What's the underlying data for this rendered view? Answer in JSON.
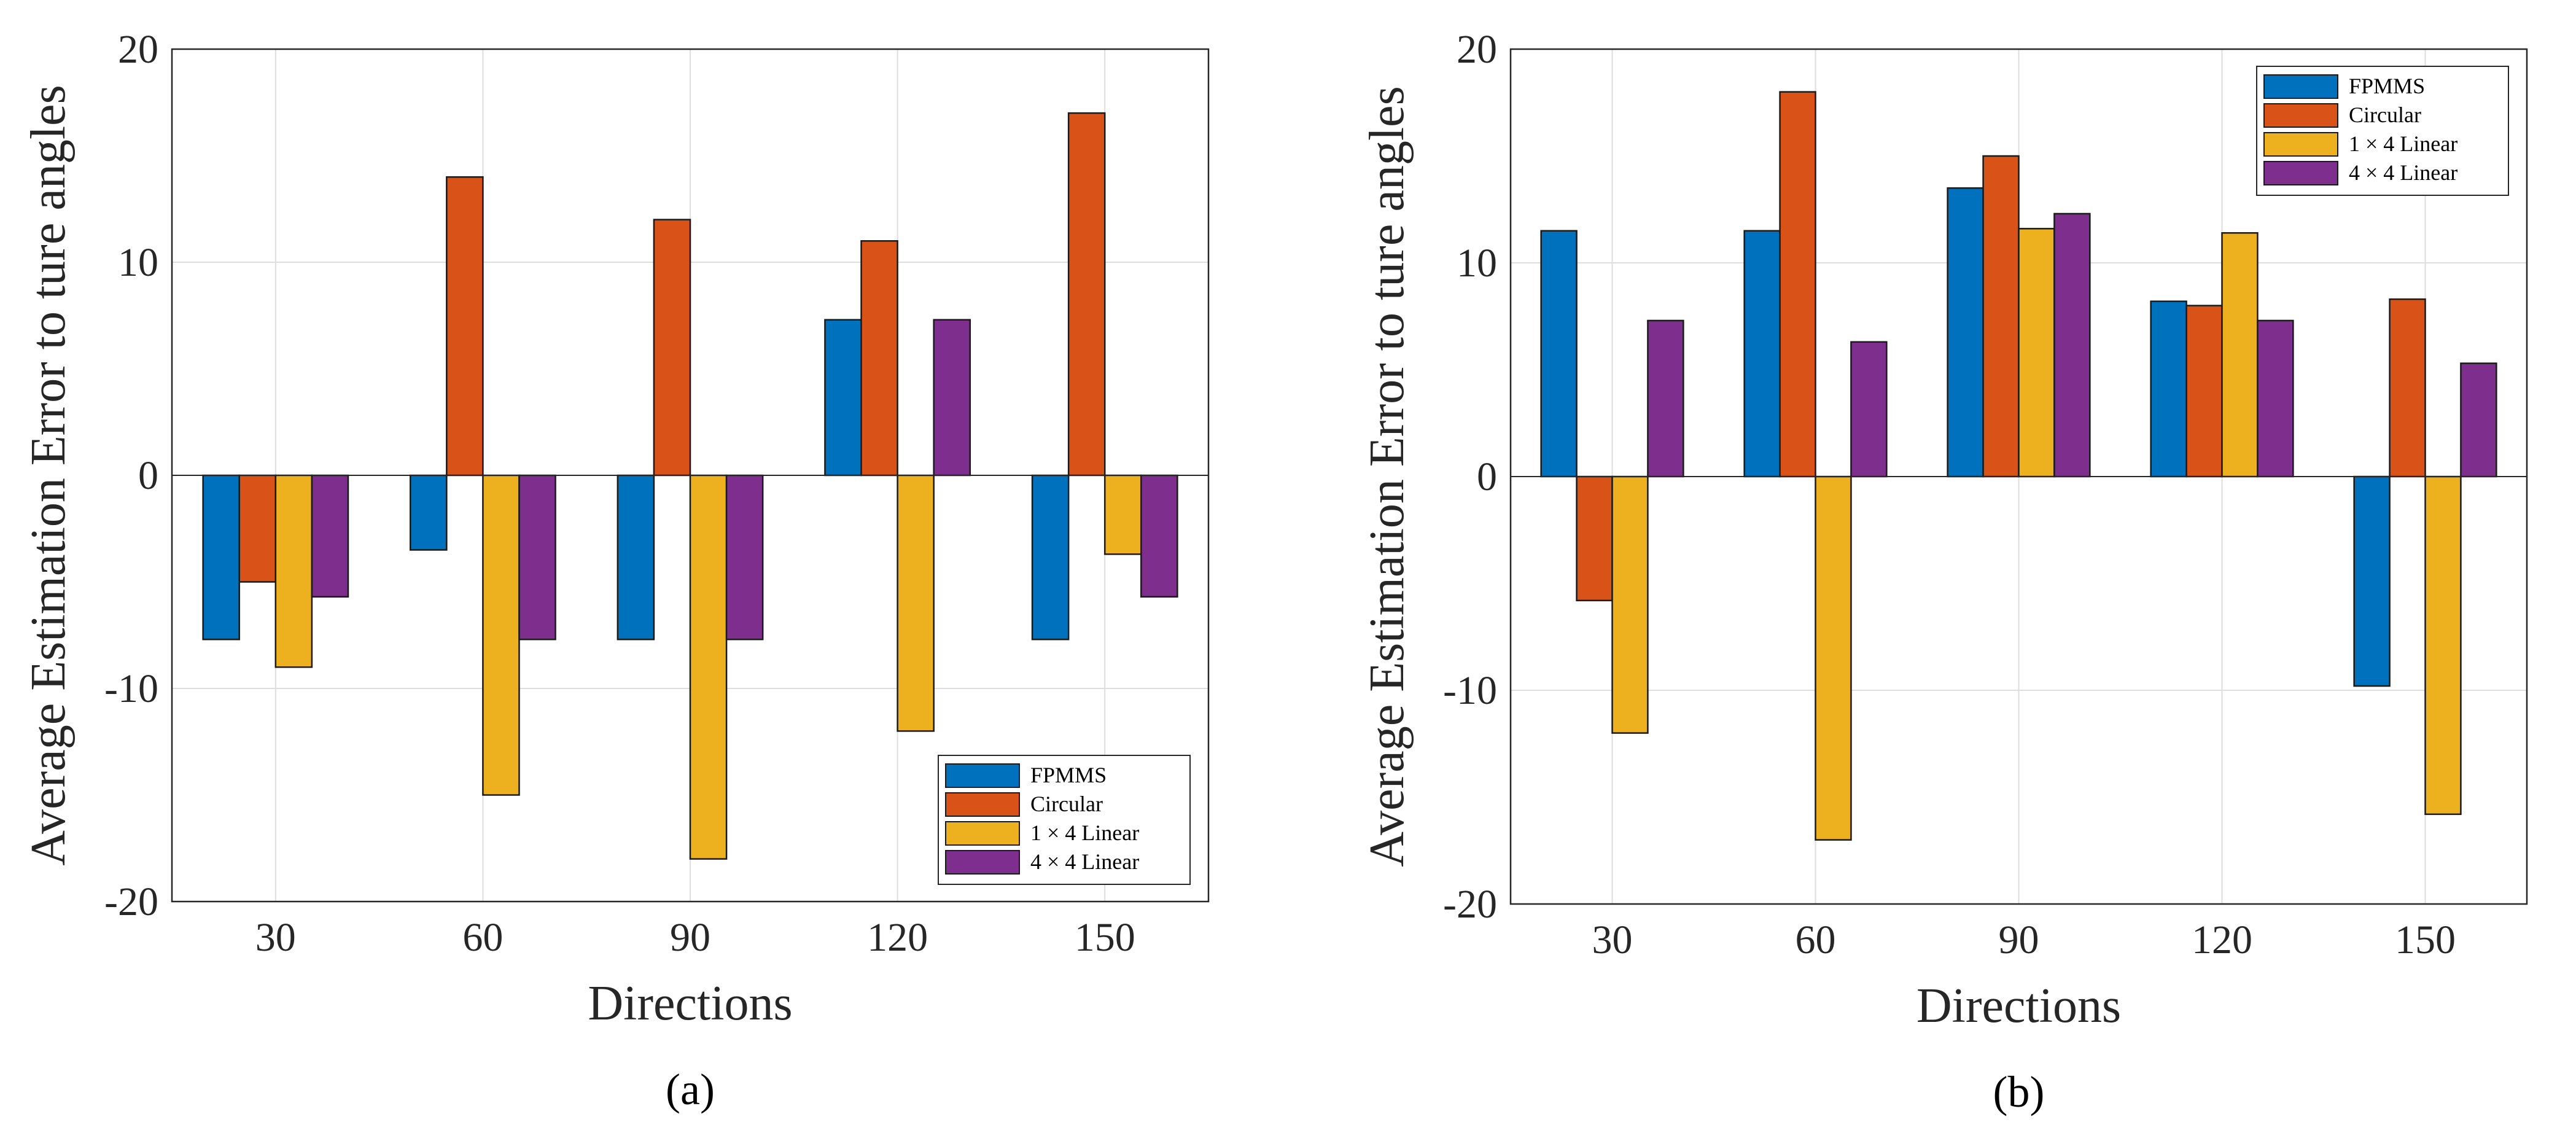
{
  "colors": {
    "FPMMS": "#0072BD",
    "Circular": "#D95319",
    "1x4": "#EDB120",
    "4x4": "#7E2F8E"
  },
  "chart_data": [
    {
      "type": "bar",
      "panel_label": "(a)",
      "xlabel": "Directions",
      "ylabel": "Average Estimation Error to ture angles",
      "categories": [
        "30",
        "60",
        "90",
        "120",
        "150"
      ],
      "ylim": [
        -20,
        20
      ],
      "yticks": [
        "-20",
        "-10",
        "0",
        "10",
        "20"
      ],
      "grid": true,
      "legend_position": "bottom-right",
      "series": [
        {
          "name": "FPMMS",
          "values": [
            -7.7,
            -3.5,
            -7.7,
            7.3,
            -7.7
          ]
        },
        {
          "name": "Circular",
          "values": [
            -5.0,
            14.0,
            12.0,
            11.0,
            17.0
          ]
        },
        {
          "name": "1 × 4 Linear",
          "values": [
            -9.0,
            -15.0,
            -18.0,
            -12.0,
            -3.7
          ]
        },
        {
          "name": "4 × 4 Linear",
          "values": [
            -5.7,
            -7.7,
            -7.7,
            7.3,
            -5.7
          ]
        }
      ]
    },
    {
      "type": "bar",
      "panel_label": "(b)",
      "xlabel": "Directions",
      "ylabel": "Average Estimation Error to ture angles",
      "categories": [
        "30",
        "60",
        "90",
        "120",
        "150"
      ],
      "ylim": [
        -20,
        20
      ],
      "yticks": [
        "-20",
        "-10",
        "0",
        "10",
        "20"
      ],
      "grid": true,
      "legend_position": "top-right",
      "series": [
        {
          "name": "FPMMS",
          "values": [
            11.5,
            11.5,
            13.5,
            8.2,
            -9.8
          ]
        },
        {
          "name": "Circular",
          "values": [
            -5.8,
            18.0,
            15.0,
            8.0,
            8.3
          ]
        },
        {
          "name": "1 × 4 Linear",
          "values": [
            -12.0,
            -17.0,
            11.6,
            11.4,
            -15.8
          ]
        },
        {
          "name": "4 × 4 Linear",
          "values": [
            7.3,
            6.3,
            12.3,
            7.3,
            5.3
          ]
        }
      ]
    }
  ]
}
